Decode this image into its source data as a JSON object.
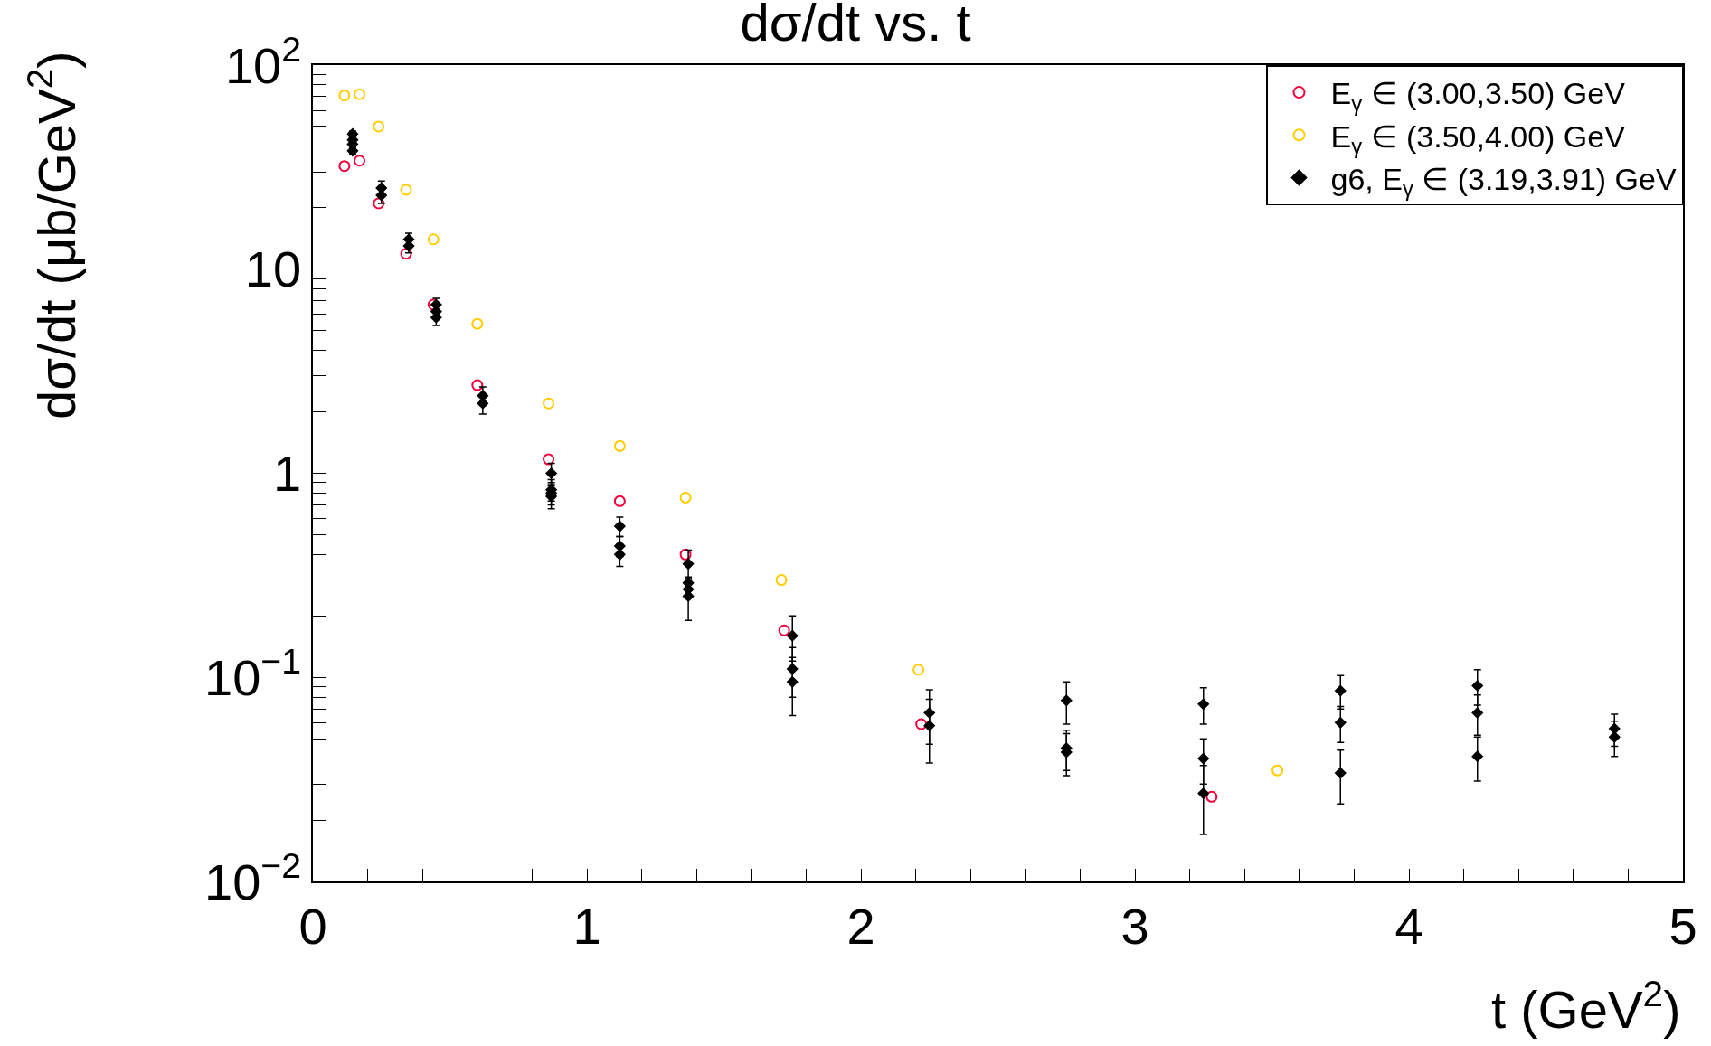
{
  "chart_data": {
    "type": "scatter",
    "title": "dσ/dt vs. t",
    "xlabel": "t (GeV$^{2}$)",
    "ylabel": "dσ/dt (μb/GeV$^{2}$)",
    "log": "y",
    "legend": "top right",
    "xlim": [
      0,
      5
    ],
    "ylim": [
      0.01,
      100
    ],
    "xticks": [
      0,
      {
        "value": 0.2,
        "label": null
      },
      {
        "value": 0.4,
        "label": null
      },
      {
        "value": 0.6,
        "label": null
      },
      {
        "value": 0.8,
        "label": null
      },
      1,
      {
        "value": 1.2,
        "label": null
      },
      {
        "value": 1.4,
        "label": null
      },
      {
        "value": 1.6,
        "label": null
      },
      {
        "value": 1.8,
        "label": null
      },
      2,
      {
        "value": 2.2,
        "label": null
      },
      {
        "value": 2.4,
        "label": null
      },
      {
        "value": 2.6,
        "label": null
      },
      {
        "value": 2.8,
        "label": null
      },
      3,
      {
        "value": 3.2,
        "label": null
      },
      {
        "value": 3.4,
        "label": null
      },
      {
        "value": 3.6,
        "label": null
      },
      {
        "value": 3.8,
        "label": null
      },
      4,
      {
        "value": 4.2,
        "label": null
      },
      {
        "value": 4.4,
        "label": null
      },
      {
        "value": 4.6,
        "label": null
      },
      {
        "value": 4.8,
        "label": null
      },
      5
    ],
    "yticks": [
      {
        "value": 0.01,
        "label": "10$^{−2}$"
      },
      {
        "value": 0.02,
        "label": null
      },
      {
        "value": 0.03,
        "label": null
      },
      {
        "value": 0.04,
        "label": null
      },
      {
        "value": 0.05,
        "label": null
      },
      {
        "value": 0.06,
        "label": null
      },
      {
        "value": 0.07,
        "label": null
      },
      {
        "value": 0.08,
        "label": null
      },
      {
        "value": 0.09,
        "label": null
      },
      {
        "value": 0.1,
        "label": "10$^{−1}$"
      },
      {
        "value": 0.2,
        "label": null
      },
      {
        "value": 0.3,
        "label": null
      },
      {
        "value": 0.4,
        "label": null
      },
      {
        "value": 0.5,
        "label": null
      },
      {
        "value": 0.6,
        "label": null
      },
      {
        "value": 0.7,
        "label": null
      },
      {
        "value": 0.8,
        "label": null
      },
      {
        "value": 0.9,
        "label": null
      },
      1,
      {
        "value": 2,
        "label": null
      },
      {
        "value": 3,
        "label": null
      },
      {
        "value": 4,
        "label": null
      },
      {
        "value": 5,
        "label": null
      },
      {
        "value": 6,
        "label": null
      },
      {
        "value": 7,
        "label": null
      },
      {
        "value": 8,
        "label": null
      },
      {
        "value": 9,
        "label": null
      },
      10,
      {
        "value": 20,
        "label": null
      },
      {
        "value": 30,
        "label": null
      },
      {
        "value": 40,
        "label": null
      },
      {
        "value": 50,
        "label": null
      },
      {
        "value": 60,
        "label": null
      },
      {
        "value": 70,
        "label": null
      },
      {
        "value": 80,
        "label": null
      },
      {
        "value": 90,
        "label": null
      },
      {
        "value": 100,
        "label": "10$^{2}$"
      }
    ],
    "series": [
      {
        "name": "E$_{γ}$ ∈ (3.00,3.50) GeV",
        "color": "#f0003c",
        "marker": "circle",
        "x": [
          0.115,
          0.17,
          0.24,
          0.34,
          0.44,
          0.6,
          0.86,
          1.12,
          1.36,
          1.72,
          2.22,
          3.28
        ],
        "values": [
          32,
          34,
          21,
          11.9,
          6.7,
          2.7,
          1.17,
          0.73,
          0.4,
          0.17,
          0.059,
          0.026
        ]
      },
      {
        "name": "E$_{γ}$ ∈ (3.50,4.00) GeV",
        "color": "#ffcc00",
        "marker": "circle",
        "x": [
          0.115,
          0.17,
          0.24,
          0.34,
          0.44,
          0.6,
          0.86,
          1.12,
          1.36,
          1.71,
          2.21,
          3.52
        ],
        "values": [
          71,
          72,
          50,
          24.5,
          14,
          5.4,
          2.2,
          1.36,
          0.76,
          0.3,
          0.109,
          0.035
        ]
      },
      {
        "name": "g6, E$_{γ}$ ∈ (3.19,3.91) GeV",
        "color": "#000000",
        "marker": "diamond",
        "x": [
          0.145,
          0.145,
          0.145,
          0.145,
          0.25,
          0.25,
          0.35,
          0.35,
          0.45,
          0.45,
          0.45,
          0.62,
          0.62,
          0.87,
          0.87,
          0.87,
          0.87,
          1.12,
          1.12,
          1.12,
          1.37,
          1.37,
          1.37,
          1.37,
          1.75,
          1.75,
          1.75,
          2.25,
          2.25,
          2.75,
          2.75,
          2.75,
          3.25,
          3.25,
          3.25,
          3.75,
          3.75,
          3.75,
          4.25,
          4.25,
          4.25,
          4.75,
          4.75
        ],
        "values": [
          46,
          43,
          41,
          38,
          25,
          23,
          14,
          13,
          6.7,
          6.2,
          5.8,
          2.4,
          2.2,
          1.0,
          0.83,
          0.8,
          0.77,
          0.55,
          0.44,
          0.4,
          0.36,
          0.29,
          0.27,
          0.25,
          0.16,
          0.11,
          0.095,
          0.067,
          0.058,
          0.077,
          0.045,
          0.043,
          0.074,
          0.04,
          0.027,
          0.086,
          0.06,
          0.034,
          0.091,
          0.067,
          0.041,
          0.056,
          0.051
        ],
        "errors": [
          1.5,
          1.5,
          1.5,
          1.5,
          2,
          2,
          1,
          1,
          0.5,
          0.5,
          0.5,
          0.25,
          0.25,
          0.12,
          0.1,
          0.1,
          0.1,
          0.06,
          0.05,
          0.05,
          0.06,
          0.015,
          0.015,
          0.06,
          0.04,
          0.03,
          0.03,
          0.02,
          0.02,
          0.018,
          0.01,
          0.01,
          0.015,
          0.01,
          0.01,
          0.016,
          0.012,
          0.01,
          0.018,
          0.015,
          0.01,
          0.01,
          0.01
        ]
      }
    ]
  }
}
